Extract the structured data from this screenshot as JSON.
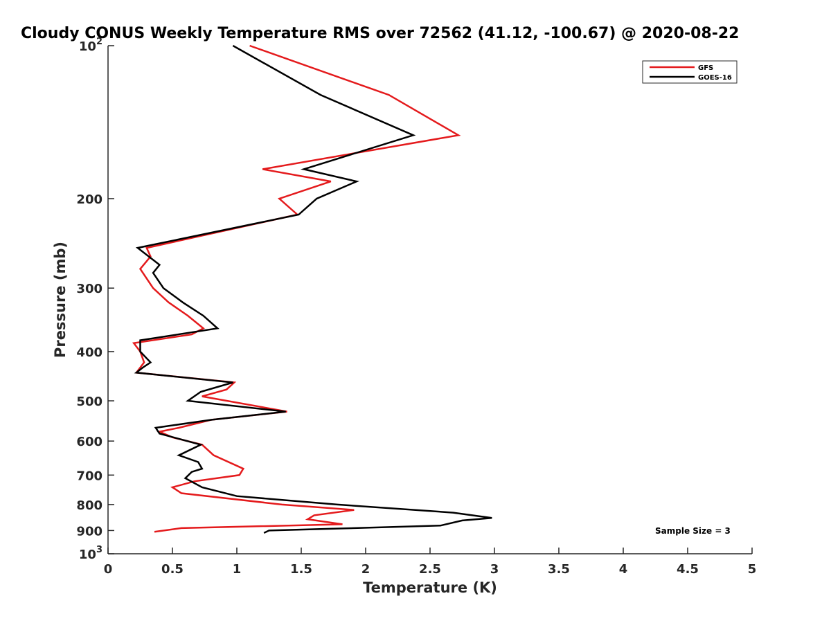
{
  "chart_data": {
    "type": "line",
    "title": "Cloudy CONUS Weekly Temperature RMS over 72562 (41.12, -100.67) @ 2020-08-22",
    "xlabel": "Temperature (K)",
    "ylabel": "Pressure (mb)",
    "xlim": [
      0,
      5
    ],
    "ylim": [
      100,
      1000
    ],
    "yscale": "log",
    "y_reversed": true,
    "x_ticks": [
      "0",
      "0.5",
      "1",
      "1.5",
      "2",
      "2.5",
      "3",
      "3.5",
      "4",
      "4.5",
      "5"
    ],
    "y_ticks": [
      {
        "value": 100,
        "base": "10",
        "exp": "2"
      },
      {
        "value": 200,
        "label": "200"
      },
      {
        "value": 300,
        "label": "300"
      },
      {
        "value": 400,
        "label": "400"
      },
      {
        "value": 500,
        "label": "500"
      },
      {
        "value": 600,
        "label": "600"
      },
      {
        "value": 700,
        "label": "700"
      },
      {
        "value": 800,
        "label": "800"
      },
      {
        "value": 900,
        "label": "900"
      },
      {
        "value": 1000,
        "base": "10",
        "exp": "3"
      }
    ],
    "legend_position": "top-right",
    "annotation": "Sample Size = 3",
    "series": [
      {
        "name": "GFS",
        "color": "#e41a1c",
        "points": [
          [
            1.1,
            100
          ],
          [
            2.18,
            125
          ],
          [
            2.72,
            150
          ],
          [
            1.2,
            175
          ],
          [
            1.73,
            185
          ],
          [
            1.33,
            200
          ],
          [
            1.47,
            215
          ],
          [
            0.3,
            250
          ],
          [
            0.33,
            260
          ],
          [
            0.25,
            275
          ],
          [
            0.35,
            300
          ],
          [
            0.47,
            320
          ],
          [
            0.62,
            340
          ],
          [
            0.74,
            360
          ],
          [
            0.65,
            370
          ],
          [
            0.2,
            385
          ],
          [
            0.25,
            400
          ],
          [
            0.28,
            420
          ],
          [
            0.25,
            430
          ],
          [
            0.22,
            440
          ],
          [
            0.98,
            460
          ],
          [
            0.92,
            475
          ],
          [
            0.73,
            490
          ],
          [
            1.39,
            525
          ],
          [
            0.8,
            545
          ],
          [
            0.55,
            565
          ],
          [
            0.4,
            575
          ],
          [
            0.5,
            590
          ],
          [
            0.73,
            610
          ],
          [
            0.82,
            640
          ],
          [
            1.05,
            680
          ],
          [
            1.02,
            700
          ],
          [
            0.67,
            720
          ],
          [
            0.5,
            740
          ],
          [
            0.57,
            760
          ],
          [
            1.35,
            800
          ],
          [
            1.91,
            820
          ],
          [
            1.6,
            840
          ],
          [
            1.55,
            855
          ],
          [
            1.82,
            875
          ],
          [
            0.57,
            890
          ],
          [
            0.36,
            905
          ]
        ]
      },
      {
        "name": "GOES-16",
        "color": "#000000",
        "points": [
          [
            0.97,
            100
          ],
          [
            1.65,
            125
          ],
          [
            2.37,
            150
          ],
          [
            1.52,
            175
          ],
          [
            1.93,
            185
          ],
          [
            1.62,
            200
          ],
          [
            1.48,
            215
          ],
          [
            0.23,
            250
          ],
          [
            0.4,
            270
          ],
          [
            0.35,
            280
          ],
          [
            0.43,
            300
          ],
          [
            0.58,
            320
          ],
          [
            0.74,
            340
          ],
          [
            0.85,
            360
          ],
          [
            0.25,
            380
          ],
          [
            0.25,
            400
          ],
          [
            0.33,
            420
          ],
          [
            0.27,
            430
          ],
          [
            0.22,
            440
          ],
          [
            0.97,
            460
          ],
          [
            0.72,
            480
          ],
          [
            0.62,
            500
          ],
          [
            1.38,
            525
          ],
          [
            0.8,
            545
          ],
          [
            0.37,
            565
          ],
          [
            0.4,
            580
          ],
          [
            0.72,
            610
          ],
          [
            0.55,
            640
          ],
          [
            0.7,
            660
          ],
          [
            0.73,
            680
          ],
          [
            0.65,
            690
          ],
          [
            0.6,
            710
          ],
          [
            0.73,
            740
          ],
          [
            1.0,
            770
          ],
          [
            1.78,
            800
          ],
          [
            2.68,
            830
          ],
          [
            2.98,
            850
          ],
          [
            2.75,
            860
          ],
          [
            2.58,
            880
          ],
          [
            1.25,
            900
          ],
          [
            1.21,
            910
          ]
        ]
      }
    ]
  }
}
